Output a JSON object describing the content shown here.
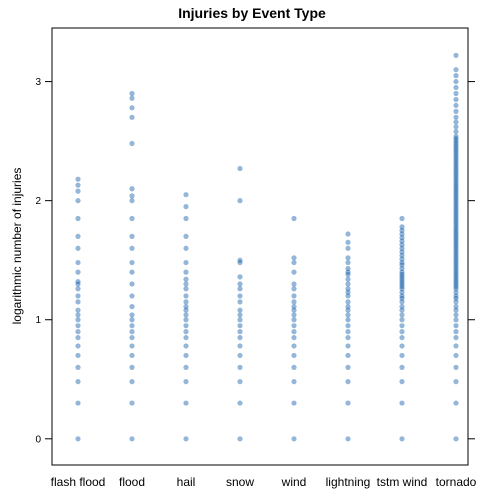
{
  "chart_data": {
    "type": "scatter",
    "title": "Injuries by Event Type",
    "xlabel": "",
    "ylabel": "logarithmic number of injuries",
    "categories": [
      "flash flood",
      "flood",
      "hail",
      "snow",
      "wind",
      "lightning",
      "tstm wind",
      "tornado"
    ],
    "y_ticks": [
      "0",
      "1",
      "2",
      "3"
    ],
    "ylim": [
      -0.22,
      3.45
    ],
    "grid": false,
    "point_color": "#0052A5",
    "values": {
      "flash flood": [
        0,
        0.3,
        0.48,
        0.6,
        0.7,
        0.78,
        0.85,
        0.9,
        0.95,
        1.0,
        1.04,
        1.08,
        1.15,
        1.2,
        1.26,
        1.3,
        1.32,
        1.4,
        1.48,
        1.6,
        1.7,
        1.85,
        2.0,
        2.08,
        2.13,
        2.18
      ],
      "flood": [
        0,
        0.3,
        0.48,
        0.6,
        0.7,
        0.78,
        0.85,
        0.9,
        0.95,
        1.0,
        1.04,
        1.11,
        1.2,
        1.3,
        1.4,
        1.48,
        1.6,
        1.7,
        1.85,
        2.0,
        2.04,
        2.1,
        2.48,
        2.7,
        2.78,
        2.86,
        2.9
      ],
      "hail": [
        0,
        0.3,
        0.48,
        0.6,
        0.7,
        0.78,
        0.85,
        0.9,
        0.95,
        1.0,
        1.04,
        1.08,
        1.11,
        1.15,
        1.2,
        1.26,
        1.3,
        1.34,
        1.4,
        1.48,
        1.6,
        1.7,
        1.85,
        1.95,
        2.05
      ],
      "snow": [
        0,
        0.3,
        0.48,
        0.6,
        0.7,
        0.78,
        0.85,
        0.9,
        0.95,
        1.0,
        1.04,
        1.08,
        1.15,
        1.2,
        1.26,
        1.3,
        1.36,
        1.48,
        1.5,
        2.0,
        2.27
      ],
      "wind": [
        0,
        0.3,
        0.48,
        0.6,
        0.7,
        0.78,
        0.85,
        0.9,
        0.95,
        1.0,
        1.04,
        1.08,
        1.11,
        1.15,
        1.2,
        1.26,
        1.3,
        1.4,
        1.48,
        1.52,
        1.85
      ],
      "lightning": [
        0,
        0.3,
        0.48,
        0.6,
        0.7,
        0.78,
        0.85,
        0.9,
        0.95,
        1.0,
        1.04,
        1.08,
        1.11,
        1.15,
        1.2,
        1.23,
        1.26,
        1.3,
        1.34,
        1.38,
        1.4,
        1.43,
        1.48,
        1.52,
        1.6,
        1.65,
        1.72
      ],
      "tstm wind": [
        0,
        0.3,
        0.48,
        0.6,
        0.7,
        0.78,
        0.85,
        0.9,
        0.95,
        1.0,
        1.04,
        1.08,
        1.11,
        1.15,
        1.18,
        1.2,
        1.23,
        1.26,
        1.28,
        1.3,
        1.32,
        1.34,
        1.36,
        1.38,
        1.4,
        1.43,
        1.46,
        1.48,
        1.51,
        1.54,
        1.57,
        1.6,
        1.63,
        1.66,
        1.69,
        1.72,
        1.75,
        1.78,
        1.85
      ],
      "tornado": [
        0,
        0.3,
        0.48,
        0.6,
        0.7,
        0.78,
        0.85,
        0.9,
        0.95,
        1.0,
        1.04,
        1.08,
        1.11,
        1.15,
        1.18,
        1.2,
        1.23,
        1.26,
        1.28,
        1.3,
        1.32,
        1.34,
        1.36,
        1.38,
        1.4,
        1.42,
        1.44,
        1.46,
        1.48,
        1.5,
        1.52,
        1.54,
        1.56,
        1.58,
        1.6,
        1.62,
        1.64,
        1.66,
        1.68,
        1.7,
        1.72,
        1.74,
        1.76,
        1.78,
        1.8,
        1.82,
        1.84,
        1.86,
        1.88,
        1.9,
        1.92,
        1.94,
        1.96,
        1.98,
        2.0,
        2.02,
        2.04,
        2.06,
        2.08,
        2.1,
        2.12,
        2.14,
        2.16,
        2.18,
        2.2,
        2.22,
        2.24,
        2.26,
        2.28,
        2.3,
        2.32,
        2.34,
        2.36,
        2.38,
        2.4,
        2.42,
        2.44,
        2.46,
        2.48,
        2.5,
        2.52,
        2.54,
        2.58,
        2.62,
        2.66,
        2.7,
        2.75,
        2.8,
        2.85,
        2.9,
        2.95,
        3.0,
        3.05,
        3.1,
        3.22
      ]
    }
  }
}
